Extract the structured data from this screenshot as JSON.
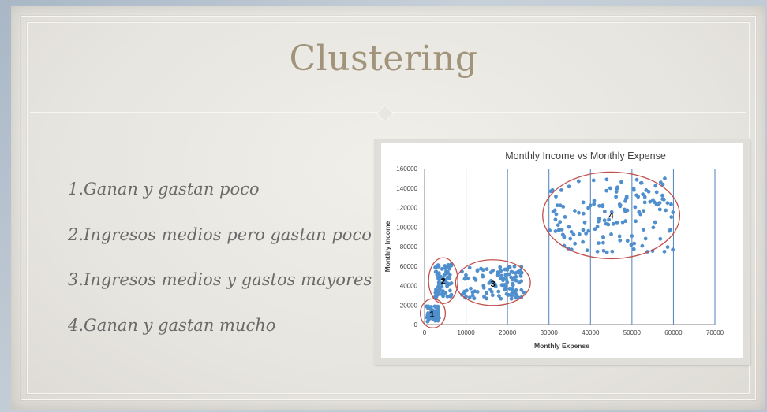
{
  "slide": {
    "title": "Clustering",
    "bullets": [
      "1.Ganan y gastan poco",
      "2.Ingresos medios pero gastan poco",
      "3.Ingresos medios y gastos mayores",
      "4.Ganan y gastan mucho"
    ]
  },
  "colors": {
    "title": "#a2937b",
    "points": "#4f8fcd",
    "ellipses": "#c0504d",
    "gridlines": "#4f81bd"
  },
  "chart_data": {
    "type": "scatter",
    "title": "Monthly Income vs Monthly Expense",
    "xlabel": "Monthly Expense",
    "ylabel": "Monthly Income",
    "xlim": [
      0,
      70000
    ],
    "ylim": [
      0,
      160000
    ],
    "x_ticks": [
      0,
      10000,
      20000,
      30000,
      40000,
      50000,
      60000,
      70000
    ],
    "y_ticks": [
      0,
      20000,
      40000,
      60000,
      80000,
      100000,
      120000,
      140000,
      160000
    ],
    "grid": "vertical",
    "clusters": [
      {
        "label": "1",
        "x_range": [
          500,
          3500
        ],
        "y_range": [
          3000,
          20000
        ],
        "center": [
          1800,
          11000
        ],
        "points": 60
      },
      {
        "label": "2",
        "x_range": [
          2500,
          6500
        ],
        "y_range": [
          28000,
          62000
        ],
        "center": [
          4500,
          45000
        ],
        "points": 70
      },
      {
        "label": "3",
        "x_range": [
          9000,
          24000
        ],
        "y_range": [
          26000,
          60000
        ],
        "center": [
          16500,
          42000
        ],
        "points": 110
      },
      {
        "label": "4",
        "x_range": [
          30000,
          60000
        ],
        "y_range": [
          74000,
          150000
        ],
        "center": [
          45000,
          112000
        ],
        "points": 150
      }
    ]
  }
}
